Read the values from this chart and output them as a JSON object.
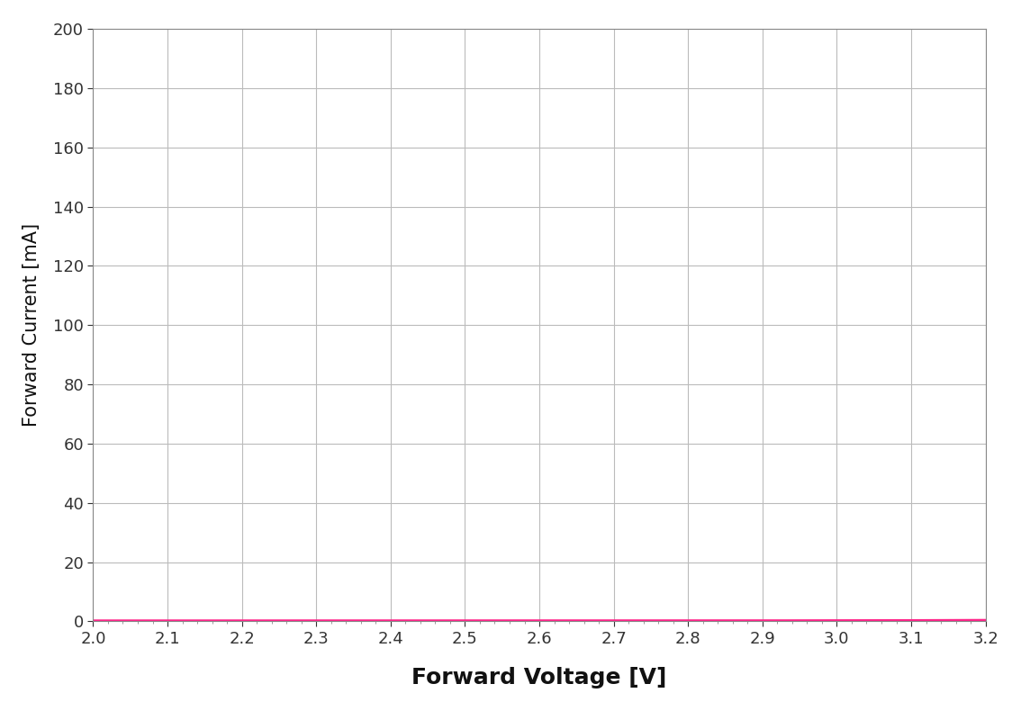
{
  "title": "",
  "xlabel": "Forward Voltage [V]",
  "ylabel": "Forward Current [mA]",
  "xlim": [
    2.0,
    3.2
  ],
  "ylim": [
    0,
    200
  ],
  "xticks": [
    2.0,
    2.1,
    2.2,
    2.3,
    2.4,
    2.5,
    2.6,
    2.7,
    2.8,
    2.9,
    3.0,
    3.1,
    3.2
  ],
  "yticks": [
    0,
    20,
    40,
    60,
    80,
    100,
    120,
    140,
    160,
    180,
    200
  ],
  "curve_color": "#FF2288",
  "curve_linewidth": 3.0,
  "background_color": "#ffffff",
  "grid_color": "#bbbbbb",
  "xlabel_fontsize": 18,
  "ylabel_fontsize": 15,
  "tick_fontsize": 13,
  "diode_Vt": 0.026,
  "diode_n": 6.5,
  "diode_V0": 2.48,
  "diode_I0": 2.5e-06
}
